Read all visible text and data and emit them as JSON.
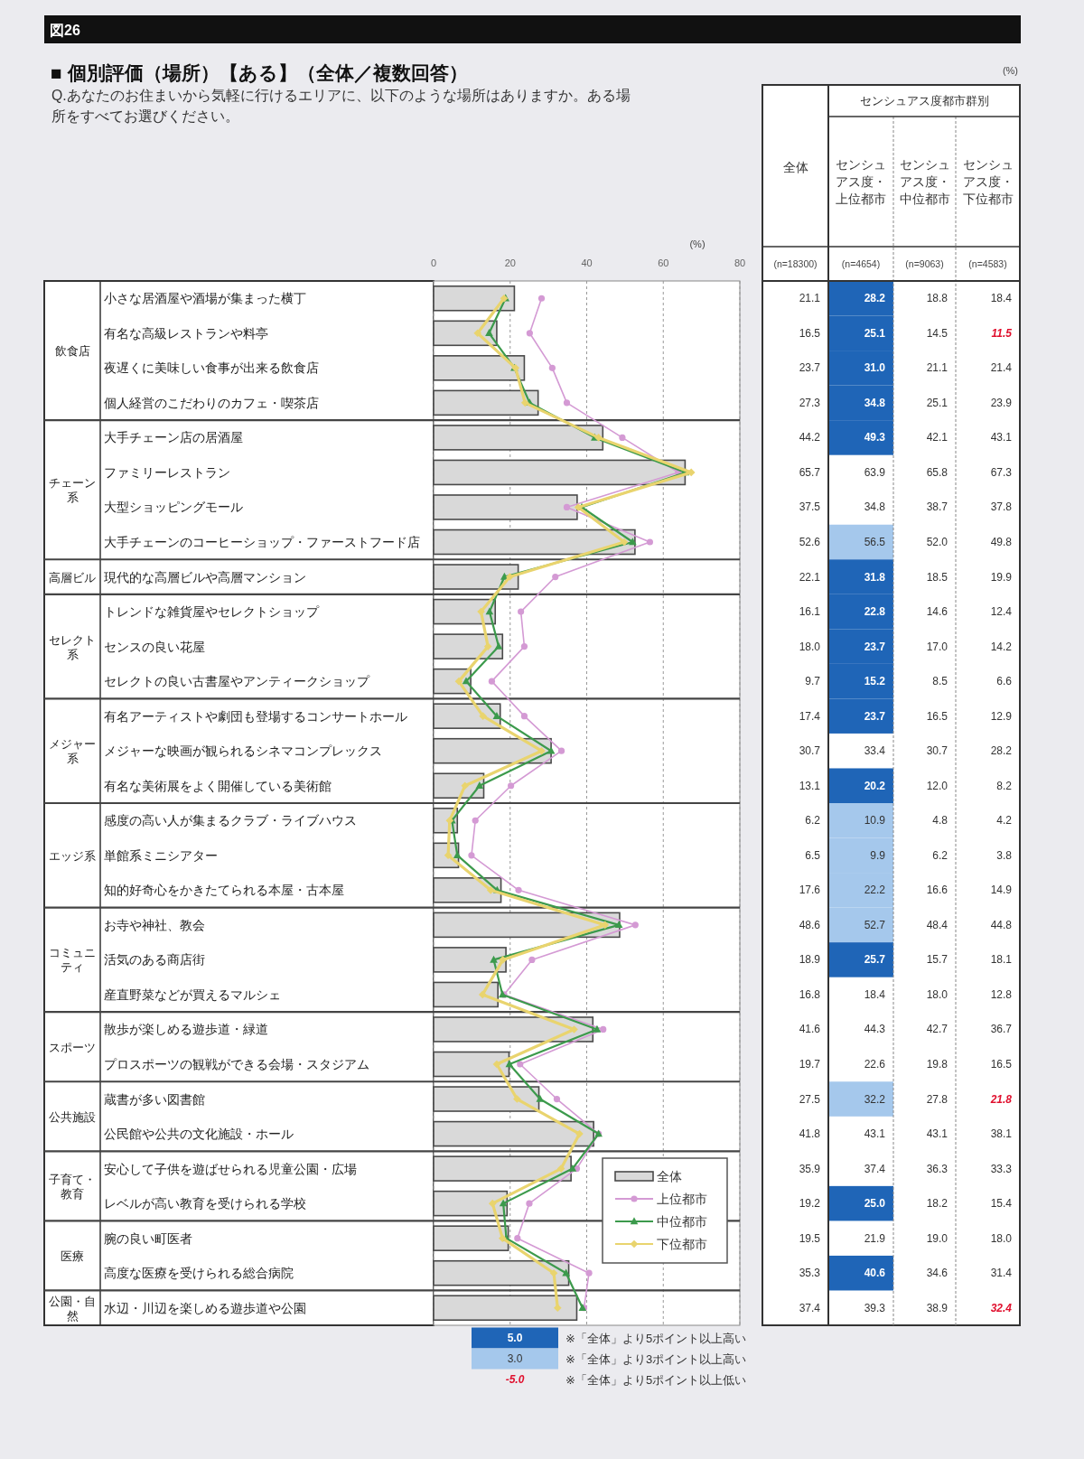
{
  "chart_data": {
    "type": "bar",
    "orientation": "horizontal",
    "title": "■ 個別評価（場所）【ある】（全体／複数回答）",
    "subtitle": "Q.あなたのお住まいから気軽に行けるエリアに、以下のような場所はありますか。ある場所をすべてお選びください。",
    "xlabel": "(%)",
    "categories": [
      "小さな居酒屋や酒場が集まった横丁",
      "有名な高級レストランや料亭",
      "夜遅くに美味しい食事が出来る飲食店",
      "個人経営のこだわりのカフェ・喫茶店",
      "大手チェーン店の居酒屋",
      "ファミリーレストラン",
      "大型ショッピングモール",
      "大手チェーンのコーヒーショップ・ファーストフード店",
      "現代的な高層ビルや高層マンション",
      "トレンドな雑貨屋やセレクトショップ",
      "センスの良い花屋",
      "セレクトの良い古書屋やアンティークショップ",
      "有名アーティストや劇団も登場するコンサートホール",
      "メジャーな映画が観られるシネマコンプレックス",
      "有名な美術展をよく開催している美術館",
      "感度の高い人が集まるクラブ・ライブハウス",
      "単館系ミニシアター",
      "知的好奇心をかきたてられる本屋・古本屋",
      "お寺や神社、教会",
      "活気のある商店街",
      "産直野菜などが買えるマルシェ",
      "散歩が楽しめる遊歩道・緑道",
      "プロスポーツの観戦ができる会場・スタジアム",
      "蔵書が多い図書館",
      "公民館や公共の文化施設・ホール",
      "安心して子供を遊ばせられる児童公園・広場",
      "レベルが高い教育を受けられる学校",
      "腕の良い町医者",
      "高度な医療を受けられる総合病院",
      "水辺・川辺を楽しめる遊歩道や公園"
    ],
    "series": [
      {
        "name": "全体",
        "color": "#d9d9d9",
        "values": [
          21.1,
          16.5,
          23.7,
          27.3,
          44.2,
          65.7,
          37.5,
          52.6,
          22.1,
          16.1,
          18.0,
          9.7,
          17.4,
          30.7,
          13.1,
          6.2,
          6.5,
          17.6,
          48.6,
          18.9,
          16.8,
          41.6,
          19.7,
          27.5,
          41.8,
          35.9,
          19.2,
          19.5,
          35.3,
          37.4
        ],
        "value_labels": [
          "21.1",
          "16.5",
          "23.7",
          "27.3",
          "44.2",
          "65.7",
          "37.5",
          "52.6",
          "22.1",
          "16.1",
          "18.0",
          "9.7",
          "17.4",
          "30.7",
          "13.1",
          "6.2",
          "6.5",
          "17.6",
          "48.6",
          "18.9",
          "16.8",
          "41.6",
          "19.7",
          "27.5",
          "41.8",
          "35.9",
          "19.2",
          "19.5",
          "35.3",
          "37.4"
        ]
      },
      {
        "name": "上位都市",
        "type": "line",
        "color": "#d49ad4",
        "marker": "circle",
        "values": [
          28.2,
          25.1,
          31.0,
          34.8,
          49.3,
          63.9,
          34.8,
          56.5,
          31.8,
          22.8,
          23.7,
          15.2,
          23.7,
          33.4,
          20.2,
          10.9,
          9.9,
          22.2,
          52.7,
          25.7,
          18.4,
          44.3,
          22.6,
          32.2,
          43.1,
          37.4,
          25.0,
          21.9,
          40.6,
          39.3
        ],
        "value_labels": [
          "28.2",
          "25.1",
          "31.0",
          "34.8",
          "49.3",
          "63.9",
          "34.8",
          "56.5",
          "31.8",
          "22.8",
          "23.7",
          "15.2",
          "23.7",
          "33.4",
          "20.2",
          "10.9",
          "9.9",
          "22.2",
          "52.7",
          "25.7",
          "18.4",
          "44.3",
          "22.6",
          "32.2",
          "43.1",
          "37.4",
          "25.0",
          "21.9",
          "40.6",
          "39.3"
        ]
      },
      {
        "name": "中位都市",
        "type": "line",
        "color": "#3c9a4c",
        "marker": "triangle",
        "values": [
          18.8,
          14.5,
          21.1,
          25.1,
          42.1,
          65.8,
          38.7,
          52.0,
          18.5,
          14.6,
          17.0,
          8.5,
          16.5,
          30.7,
          12.0,
          4.8,
          6.2,
          16.6,
          48.4,
          15.7,
          18.0,
          42.7,
          19.8,
          27.8,
          43.1,
          36.3,
          18.2,
          19.0,
          34.6,
          38.9
        ],
        "value_labels": [
          "18.8",
          "14.5",
          "21.1",
          "25.1",
          "42.1",
          "65.8",
          "38.7",
          "52.0",
          "18.5",
          "14.6",
          "17.0",
          "8.5",
          "16.5",
          "30.7",
          "12.0",
          "4.8",
          "6.2",
          "16.6",
          "48.4",
          "15.7",
          "18.0",
          "42.7",
          "19.8",
          "27.8",
          "43.1",
          "36.3",
          "18.2",
          "19.0",
          "34.6",
          "38.9"
        ]
      },
      {
        "name": "下位都市",
        "type": "line",
        "color": "#e9d46e",
        "marker": "diamond",
        "values": [
          18.4,
          11.5,
          21.4,
          23.9,
          43.1,
          67.3,
          37.8,
          49.8,
          19.9,
          12.4,
          14.2,
          6.6,
          12.9,
          28.2,
          8.2,
          4.2,
          3.8,
          14.9,
          44.8,
          18.1,
          12.8,
          36.7,
          16.5,
          21.8,
          38.1,
          33.3,
          15.4,
          18.0,
          31.4,
          32.4
        ],
        "value_labels": [
          "18.4",
          "11.5",
          "21.4",
          "23.9",
          "43.1",
          "67.3",
          "37.8",
          "49.8",
          "19.9",
          "12.4",
          "14.2",
          "6.6",
          "12.9",
          "28.2",
          "8.2",
          "4.2",
          "3.8",
          "14.9",
          "44.8",
          "18.1",
          "12.8",
          "36.7",
          "16.5",
          "21.8",
          "38.1",
          "33.3",
          "15.4",
          "18.0",
          "31.4",
          "32.4"
        ]
      }
    ],
    "xlim": [
      0,
      80
    ],
    "xticks": [
      0,
      20,
      40,
      60,
      80
    ],
    "grid": "x",
    "legend": "bottom right",
    "annotations": [
      "図26",
      "(%)",
      "センシュアス度都市群別",
      "全体",
      "センシュアス度・上位都市",
      "センシュアス度・中位都市",
      "センシュアス度・下位都市",
      "(n=18300)",
      "(n=4654)",
      "(n=9063)",
      "(n=4583)",
      "5.0",
      "※「全体」より5ポイント以上高い",
      "3.0",
      "※「全体」より3ポイント以上高い",
      "-5.0",
      "※「全体」より5ポイント以上低い",
      "飲食店",
      "チェーン系",
      "高層ビル",
      "セレクト系",
      "メジャー系",
      "エッジ系",
      "コミュニティ",
      "スポーツ",
      "公共施設",
      "子育て・教育",
      "医療",
      "公園・自然"
    ]
  }
}
